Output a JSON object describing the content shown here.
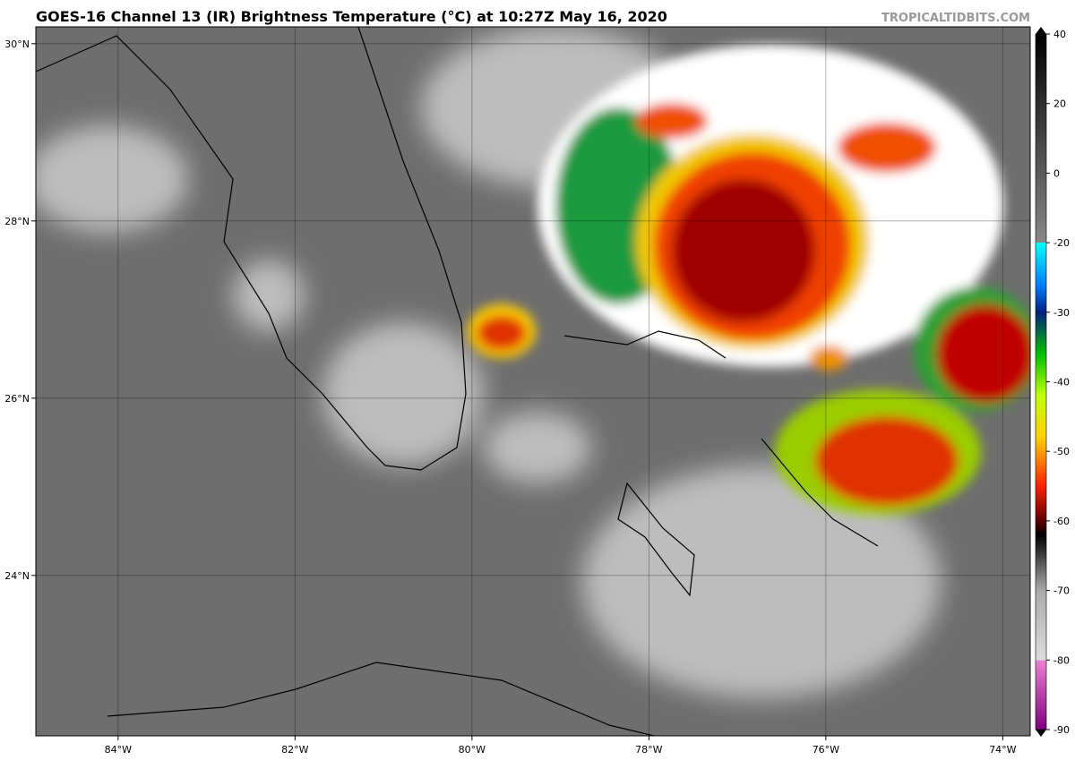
{
  "header": {
    "title": "GOES-16 Channel 13 (IR) Brightness Temperature (°C) at 10:27Z May 16, 2020",
    "credit": "TROPICALTIDBITS.COM"
  },
  "map": {
    "lonlim": [
      -84.93,
      -73.69
    ],
    "latlim": [
      22.19,
      30.19
    ],
    "lonticks": [
      {
        "value": -84,
        "label": "84°W"
      },
      {
        "value": -82,
        "label": "82°W"
      },
      {
        "value": -80,
        "label": "80°W"
      },
      {
        "value": -78,
        "label": "78°W"
      },
      {
        "value": -76,
        "label": "76°W"
      },
      {
        "value": -74,
        "label": "74°W"
      }
    ],
    "latticks": [
      {
        "value": 30,
        "label": "30°N"
      },
      {
        "value": 28,
        "label": "28°N"
      },
      {
        "value": 26,
        "label": "26°N"
      },
      {
        "value": 24,
        "label": "24°N"
      }
    ]
  },
  "colorbar": {
    "ticks": [
      40,
      20,
      0,
      -20,
      -30,
      -40,
      -50,
      -60,
      -70,
      -80,
      -90
    ]
  }
}
